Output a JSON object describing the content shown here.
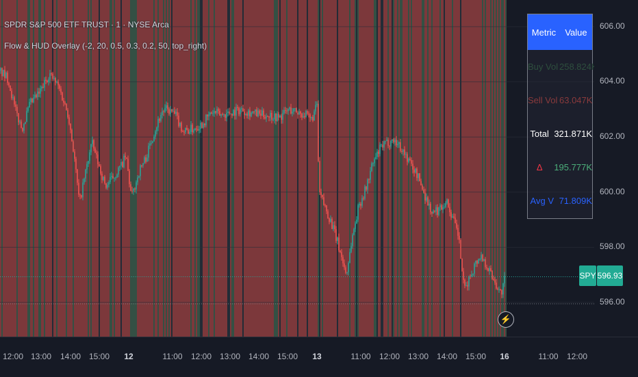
{
  "header": {
    "symbol_line": "SPDR S&P 500 ETF TRUST · 1 · NYSE Arca",
    "indicator_line": "Flow & HUD Overlay (-2, 20, 0.5, 0.3, 0.2, 50, top_right)"
  },
  "price_scale": {
    "ticks": [
      "606.00",
      "604.00",
      "602.00",
      "600.00",
      "598.00",
      "596.00"
    ]
  },
  "time_axis": {
    "ticks": [
      {
        "label": "12:00",
        "day": false
      },
      {
        "label": "13:00",
        "day": false
      },
      {
        "label": "14:00",
        "day": false
      },
      {
        "label": "15:00",
        "day": false
      },
      {
        "label": "12",
        "day": true
      },
      {
        "label": "11:00",
        "day": false
      },
      {
        "label": "12:00",
        "day": false
      },
      {
        "label": "13:00",
        "day": false
      },
      {
        "label": "14:00",
        "day": false
      },
      {
        "label": "15:00",
        "day": false
      },
      {
        "label": "13",
        "day": true
      },
      {
        "label": "11:00",
        "day": false
      },
      {
        "label": "12:00",
        "day": false
      },
      {
        "label": "13:00",
        "day": false
      },
      {
        "label": "14:00",
        "day": false
      },
      {
        "label": "15:00",
        "day": false
      },
      {
        "label": "16",
        "day": true
      },
      {
        "label": "11:00",
        "day": false
      },
      {
        "label": "12:00",
        "day": false
      }
    ]
  },
  "hud": {
    "header": {
      "metric": "Metric",
      "value": "Value"
    },
    "rows": [
      {
        "metric": "Buy Vol",
        "value": "258.824K",
        "metric_color": "#2e4f3e",
        "value_color": "#2e4f3e"
      },
      {
        "metric": "Sell Vol",
        "value": "63.047K",
        "metric_color": "#8a3a3c",
        "value_color": "#8a3a3c"
      },
      {
        "metric": "Total",
        "value": "321.871K",
        "metric_color": "#ffffff",
        "value_color": "#ffffff"
      },
      {
        "metric": "Δ",
        "value": "195.777K",
        "metric_color": "#f23645",
        "value_color": "#4caf7a"
      },
      {
        "metric": "Avg V",
        "value": "71.809K",
        "metric_color": "#2962ff",
        "value_color": "#2962ff"
      }
    ]
  },
  "last_price": {
    "symbol": "SPY",
    "value": "596.93"
  },
  "chart_data": {
    "type": "candlestick",
    "ylim": [
      595.5,
      606.5
    ],
    "y_ticks": [
      596,
      598,
      600,
      602,
      604,
      606
    ],
    "last_price": 596.93,
    "price_path": [
      [
        0,
        604.4
      ],
      [
        12,
        604.1
      ],
      [
        22,
        603.0
      ],
      [
        32,
        602.3
      ],
      [
        44,
        603.2
      ],
      [
        58,
        603.6
      ],
      [
        72,
        604.3
      ],
      [
        86,
        603.8
      ],
      [
        100,
        602.8
      ],
      [
        108,
        601.4
      ],
      [
        116,
        599.6
      ],
      [
        124,
        600.6
      ],
      [
        134,
        601.8
      ],
      [
        144,
        601.0
      ],
      [
        154,
        600.2
      ],
      [
        164,
        600.5
      ],
      [
        176,
        600.9
      ],
      [
        184,
        601.3
      ],
      [
        192,
        599.8
      ],
      [
        204,
        600.8
      ],
      [
        214,
        601.3
      ],
      [
        224,
        602.1
      ],
      [
        236,
        602.9
      ],
      [
        244,
        603.0
      ],
      [
        256,
        602.8
      ],
      [
        268,
        602.2
      ],
      [
        282,
        602.3
      ],
      [
        296,
        602.5
      ],
      [
        310,
        602.9
      ],
      [
        324,
        602.8
      ],
      [
        338,
        602.9
      ],
      [
        352,
        603.0
      ],
      [
        366,
        602.9
      ],
      [
        380,
        602.8
      ],
      [
        394,
        602.8
      ],
      [
        408,
        602.7
      ],
      [
        422,
        603.0
      ],
      [
        436,
        602.9
      ],
      [
        446,
        602.8
      ],
      [
        454,
        602.6
      ],
      [
        460,
        602.9
      ],
      [
        463,
        603.2
      ],
      [
        466,
        600.0
      ],
      [
        474,
        599.5
      ],
      [
        484,
        598.9
      ],
      [
        494,
        598.1
      ],
      [
        506,
        597.0
      ],
      [
        514,
        598.3
      ],
      [
        524,
        599.5
      ],
      [
        534,
        600.1
      ],
      [
        544,
        601.0
      ],
      [
        556,
        601.6
      ],
      [
        566,
        601.8
      ],
      [
        576,
        601.9
      ],
      [
        586,
        601.6
      ],
      [
        598,
        601.1
      ],
      [
        610,
        600.6
      ],
      [
        622,
        599.8
      ],
      [
        632,
        599.2
      ],
      [
        642,
        599.4
      ],
      [
        652,
        599.7
      ],
      [
        662,
        599.0
      ],
      [
        670,
        598.4
      ],
      [
        678,
        596.4
      ],
      [
        686,
        596.9
      ],
      [
        694,
        597.4
      ],
      [
        702,
        597.7
      ],
      [
        710,
        597.4
      ],
      [
        718,
        597.0
      ],
      [
        726,
        596.6
      ],
      [
        732,
        596.3
      ],
      [
        738,
        596.9
      ]
    ]
  },
  "colors": {
    "up": "#26a69a",
    "down": "#ef5350",
    "accent": "#2962ff",
    "spy_badge": "#22ab94",
    "flow_buy": "#3a5a4a",
    "flow_sell": "#8e3e40"
  }
}
